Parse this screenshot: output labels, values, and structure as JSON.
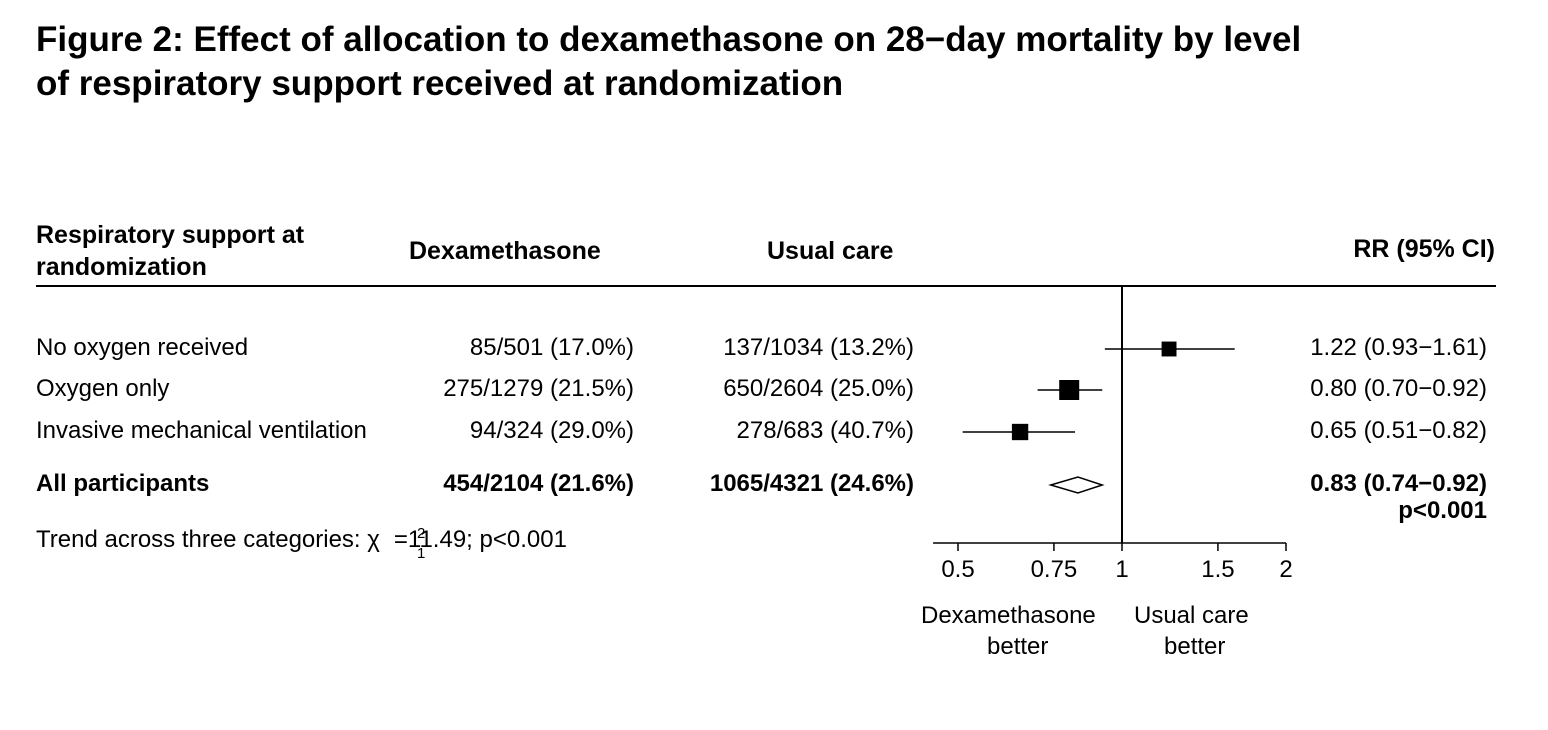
{
  "title_line1": "Figure 2: Effect of allocation to dexamethasone on 28−day mortality by level",
  "title_line2": "of respiratory support received at randomization",
  "headers": {
    "group_line1": "Respiratory support at",
    "group_line2": "randomization",
    "dexamethasone": "Dexamethasone",
    "usual_care": "Usual care",
    "rr": "RR (95% CI)"
  },
  "rows": [
    {
      "label": "No oxygen received",
      "dex": "85/501 (17.0%)",
      "usual": "137/1034 (13.2%)",
      "rr_text": "1.22 (0.93−1.61)"
    },
    {
      "label": "Oxygen only",
      "dex": "275/1279 (21.5%)",
      "usual": "650/2604 (25.0%)",
      "rr_text": "0.80 (0.70−0.92)"
    },
    {
      "label": "Invasive mechanical ventilation",
      "dex": "94/324 (29.0%)",
      "usual": "278/683 (40.7%)",
      "rr_text": "0.65 (0.51−0.82)"
    }
  ],
  "overall": {
    "label": "All participants",
    "dex": "454/2104 (21.6%)",
    "usual": "1065/4321 (24.6%)",
    "rr_text": "0.83 (0.74−0.92)",
    "p_text": "p<0.001"
  },
  "trend": {
    "prefix": "Trend across three categories: ",
    "chi": "χ",
    "sup": "2",
    "sub": "1",
    "suffix": "=11.49; p<0.001"
  },
  "axis": {
    "left_label_line1": "Dexamethasone",
    "left_label_line2": "better",
    "right_label_line1": "Usual care",
    "right_label_line2": "better"
  },
  "chart_data": {
    "type": "forest",
    "scale": "log",
    "xlim": [
      0.45,
      2
    ],
    "ticks": [
      0.5,
      0.75,
      1,
      1.5,
      2
    ],
    "tick_labels": [
      "0.5",
      "0.75",
      "1",
      "1.5",
      "2"
    ],
    "reference_line": 1,
    "estimates": [
      {
        "label": "No oxygen received",
        "rr": 1.22,
        "lo": 0.93,
        "hi": 1.61,
        "weight": 222
      },
      {
        "label": "Oxygen only",
        "rr": 0.8,
        "lo": 0.7,
        "hi": 0.92,
        "weight": 925
      },
      {
        "label": "Invasive mechanical ventilation",
        "rr": 0.65,
        "lo": 0.51,
        "hi": 0.82,
        "weight": 372
      }
    ],
    "overall": {
      "label": "All participants",
      "rr": 0.83,
      "lo": 0.74,
      "hi": 0.92
    }
  }
}
